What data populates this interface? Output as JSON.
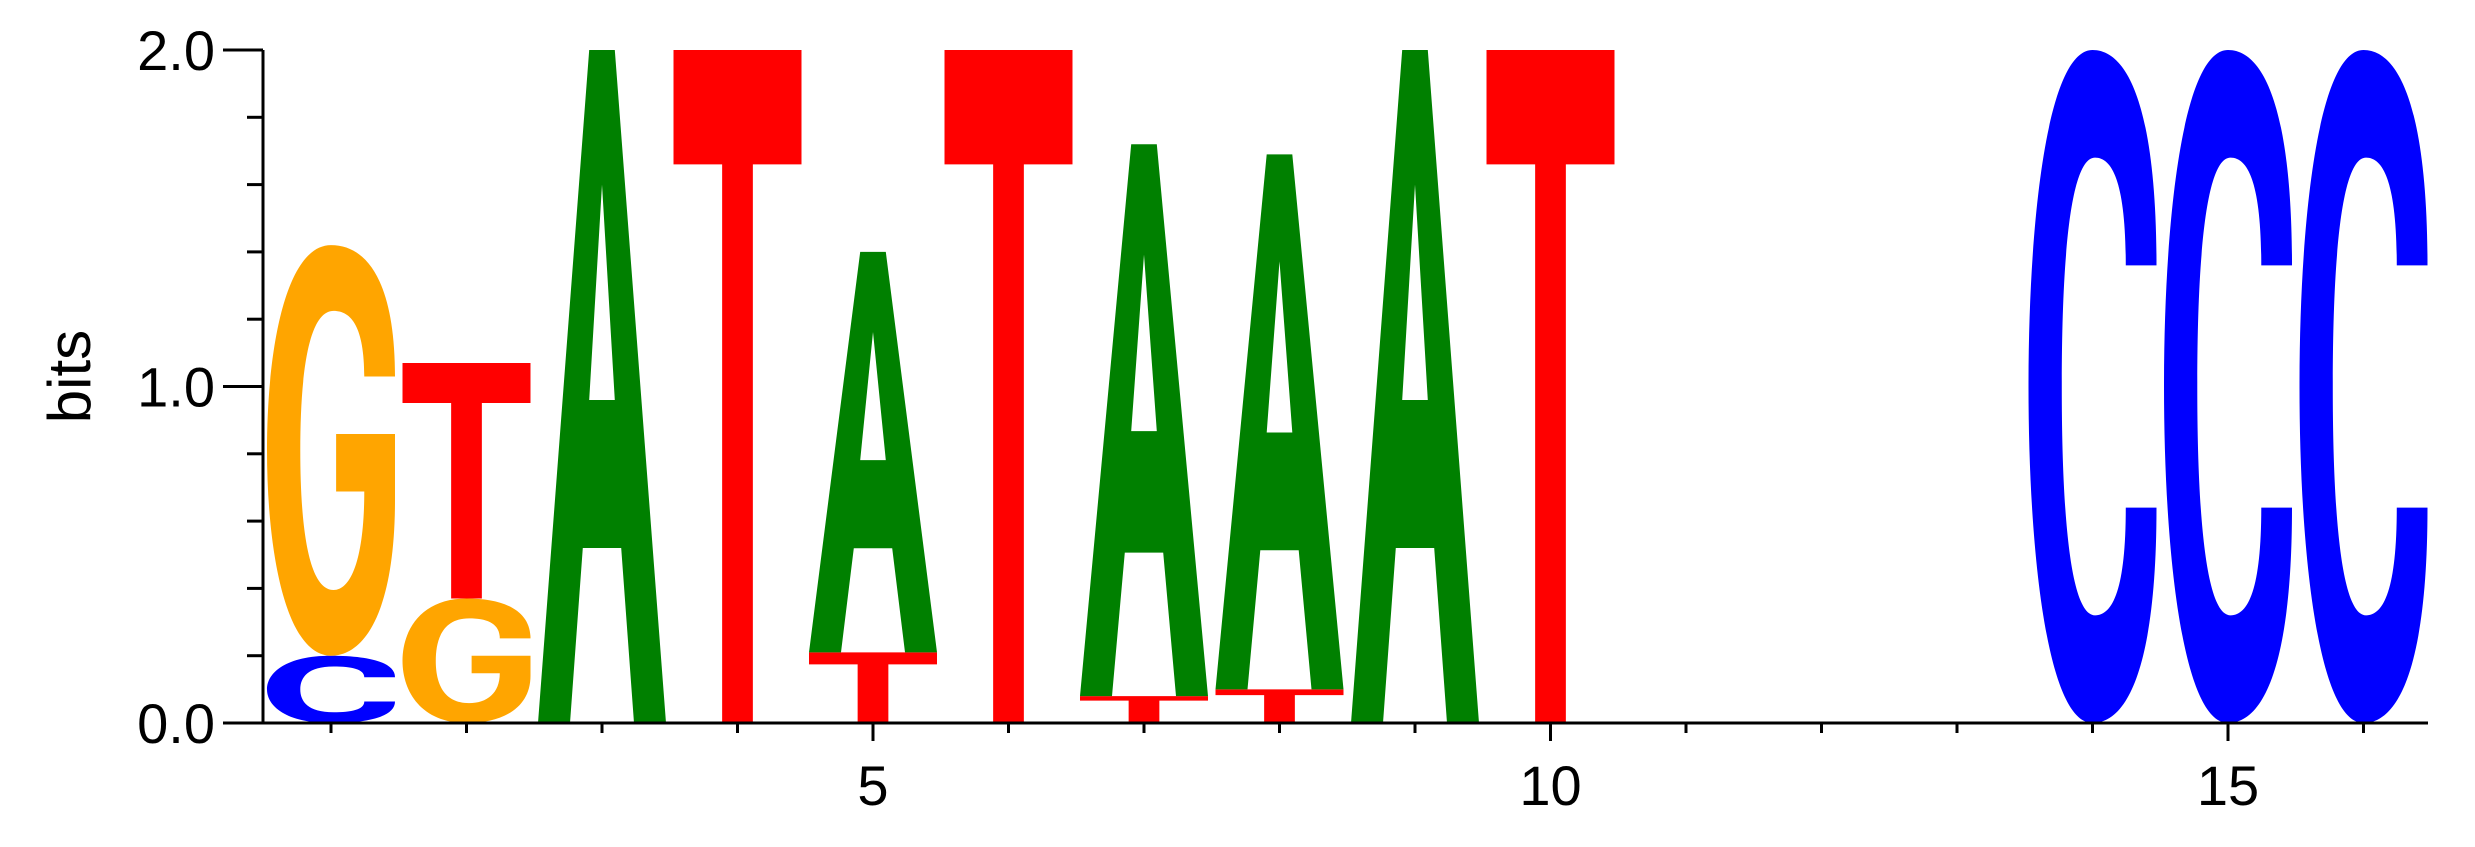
{
  "chart_data": {
    "type": "sequence-logo",
    "ylabel": "bits",
    "xlabel": "",
    "title": "",
    "ylim": [
      0,
      2.0
    ],
    "xlim": [
      0.5,
      16.5
    ],
    "y_tick_labels": [
      "0.0",
      "1.0",
      "2.0"
    ],
    "y_tick_values": [
      0,
      1,
      2
    ],
    "y_minor_step": 0.2,
    "x_tick_labels": [
      "5",
      "10",
      "15"
    ],
    "x_tick_values": [
      5,
      10,
      15
    ],
    "x_minor_ticks": [
      1,
      2,
      3,
      4,
      6,
      7,
      8,
      9,
      11,
      12,
      13,
      14,
      16
    ],
    "colors": {
      "A": "#008000",
      "C": "#0000ff",
      "G": "#ffa500",
      "T": "#ff0000"
    },
    "positions": [
      {
        "pos": 1,
        "stack": [
          {
            "letter": "C",
            "bits": 0.2
          },
          {
            "letter": "G",
            "bits": 1.22
          }
        ]
      },
      {
        "pos": 2,
        "stack": [
          {
            "letter": "G",
            "bits": 0.37
          },
          {
            "letter": "T",
            "bits": 0.7
          }
        ]
      },
      {
        "pos": 3,
        "stack": [
          {
            "letter": "A",
            "bits": 2.0
          }
        ]
      },
      {
        "pos": 4,
        "stack": [
          {
            "letter": "T",
            "bits": 2.0
          }
        ]
      },
      {
        "pos": 5,
        "stack": [
          {
            "letter": "T",
            "bits": 0.21
          },
          {
            "letter": "A",
            "bits": 1.19
          }
        ]
      },
      {
        "pos": 6,
        "stack": [
          {
            "letter": "T",
            "bits": 2.0
          }
        ]
      },
      {
        "pos": 7,
        "stack": [
          {
            "letter": "T",
            "bits": 0.08
          },
          {
            "letter": "A",
            "bits": 1.64
          }
        ]
      },
      {
        "pos": 8,
        "stack": [
          {
            "letter": "T",
            "bits": 0.1
          },
          {
            "letter": "A",
            "bits": 1.59
          }
        ]
      },
      {
        "pos": 9,
        "stack": [
          {
            "letter": "A",
            "bits": 2.0
          }
        ]
      },
      {
        "pos": 10,
        "stack": [
          {
            "letter": "T",
            "bits": 2.0
          }
        ]
      },
      {
        "pos": 11,
        "stack": []
      },
      {
        "pos": 12,
        "stack": []
      },
      {
        "pos": 13,
        "stack": []
      },
      {
        "pos": 14,
        "stack": [
          {
            "letter": "C",
            "bits": 2.0
          }
        ]
      },
      {
        "pos": 15,
        "stack": [
          {
            "letter": "C",
            "bits": 2.0
          }
        ]
      },
      {
        "pos": 16,
        "stack": [
          {
            "letter": "C",
            "bits": 2.0
          }
        ]
      }
    ]
  }
}
